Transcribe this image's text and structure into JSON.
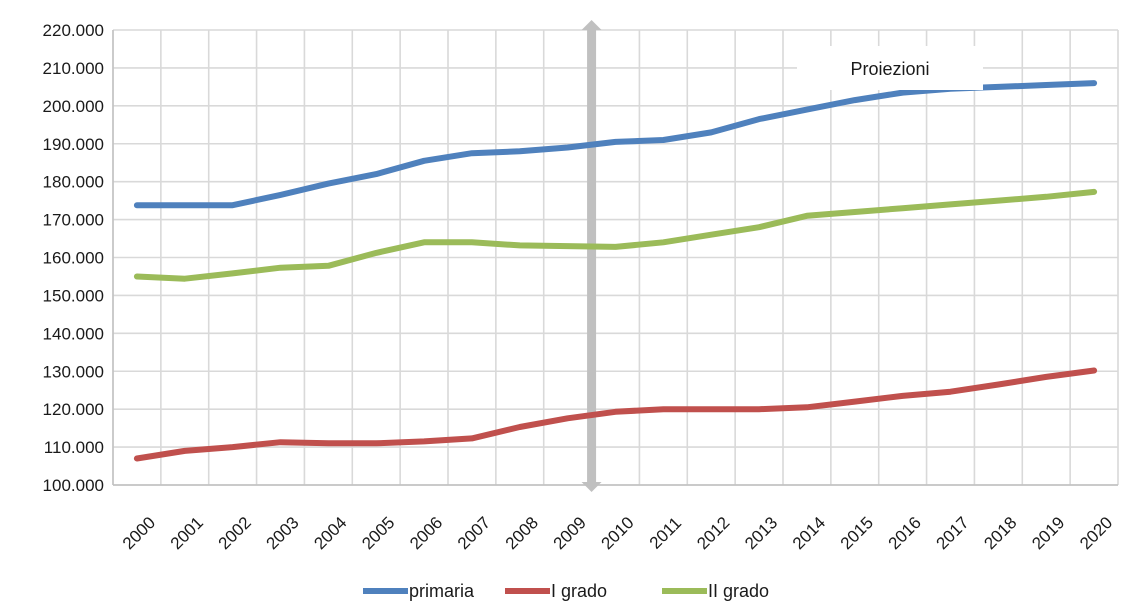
{
  "chart_data": {
    "type": "line",
    "title": "",
    "xlabel": "",
    "ylabel": "",
    "categories": [
      "2000",
      "2001",
      "2002",
      "2003",
      "2004",
      "2005",
      "2006",
      "2007",
      "2008",
      "2009",
      "2010",
      "2011",
      "2012",
      "2013",
      "2014",
      "2015",
      "2016",
      "2017",
      "2018",
      "2019",
      "2020"
    ],
    "ylim": [
      100000,
      220000
    ],
    "yticks": [
      100000,
      110000,
      120000,
      130000,
      140000,
      150000,
      160000,
      170000,
      180000,
      190000,
      200000,
      210000,
      220000
    ],
    "ytick_labels": [
      "100.000",
      "110.000",
      "120.000",
      "130.000",
      "140.000",
      "150.000",
      "160.000",
      "170.000",
      "180.000",
      "190.000",
      "200.000",
      "210.000",
      "220.000"
    ],
    "grid": true,
    "legend_position": "bottom",
    "series": [
      {
        "name": "primaria",
        "color": "#4f81bd",
        "values": [
          173800,
          173800,
          173800,
          176500,
          179500,
          182000,
          185500,
          187500,
          188000,
          189000,
          190500,
          191000,
          193000,
          196500,
          199000,
          201500,
          203500,
          204500,
          205000,
          205500,
          206000
        ]
      },
      {
        "name": "I grado",
        "color": "#c0504d",
        "values": [
          107000,
          109000,
          110000,
          111300,
          111000,
          111000,
          111500,
          112300,
          115300,
          117600,
          119300,
          120000,
          120000,
          120000,
          120500,
          122000,
          123500,
          124600,
          126500,
          128500,
          130200
        ]
      },
      {
        "name": "II grado",
        "color": "#9bbb59",
        "values": [
          155000,
          154400,
          155800,
          157300,
          157800,
          161200,
          164000,
          164000,
          163200,
          163000,
          162800,
          164000,
          166000,
          168000,
          171000,
          172000,
          173000,
          174000,
          175000,
          176000,
          177300
        ]
      }
    ],
    "annotations": [
      {
        "type": "vertical-divider",
        "at": "2010",
        "color": "#c0c0c0"
      },
      {
        "type": "text",
        "text": "Proiezioni",
        "region": "after-divider"
      }
    ]
  }
}
